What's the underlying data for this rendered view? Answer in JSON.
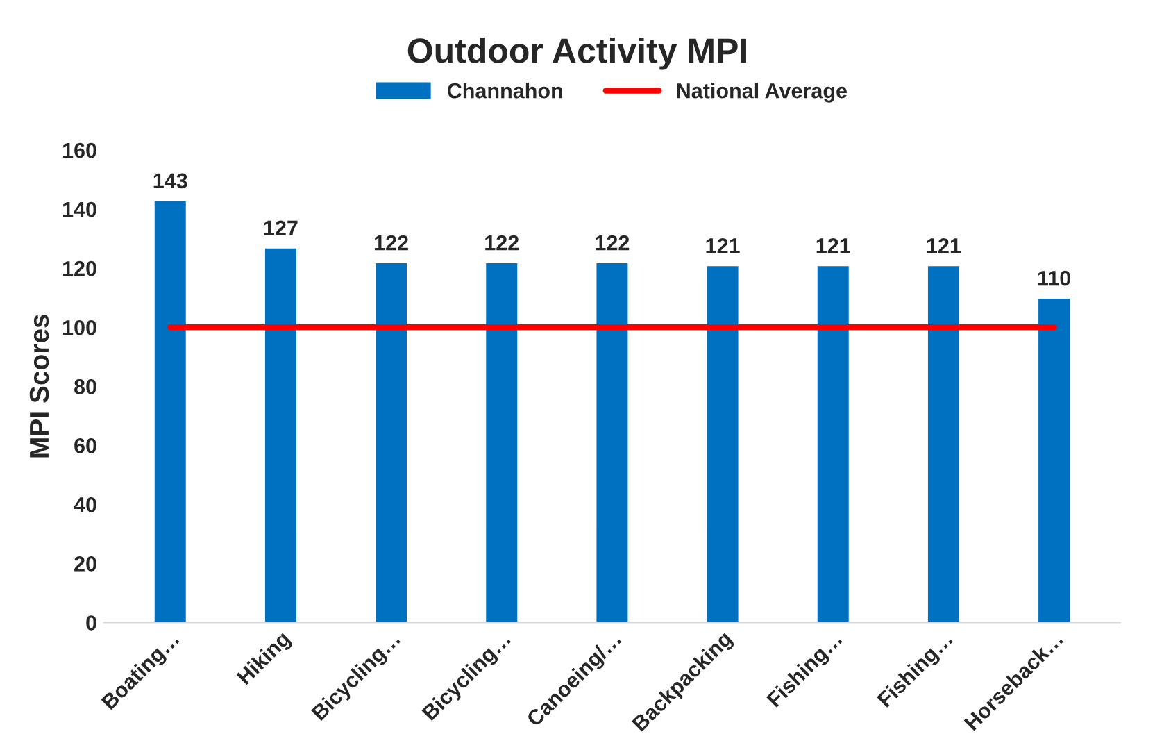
{
  "chart_data": {
    "type": "bar",
    "title": "Outdoor Activity MPI",
    "ylabel": "MPI Scores",
    "categories": [
      "Boating…",
      "Hiking",
      "Bicycling…",
      "Bicycling…",
      "Canoeing/…",
      "Backpacking",
      "Fishing…",
      "Fishing…",
      "Horseback…"
    ],
    "series": [
      {
        "name": "Channahon",
        "color": "#0070c0",
        "values": [
          143,
          127,
          122,
          122,
          122,
          121,
          121,
          121,
          110
        ],
        "value_labels": [
          "143",
          "127",
          "122",
          "122",
          "122",
          "121",
          "121",
          "121",
          "110"
        ]
      },
      {
        "name": "National Average",
        "type": "line",
        "color": "#ff0000",
        "values": [
          100,
          100,
          100,
          100,
          100,
          100,
          100,
          100,
          100
        ]
      }
    ],
    "ylim": [
      0,
      160
    ],
    "yticks": [
      0,
      20,
      40,
      60,
      80,
      100,
      120,
      140,
      160
    ],
    "grid": false,
    "legend": "top"
  }
}
